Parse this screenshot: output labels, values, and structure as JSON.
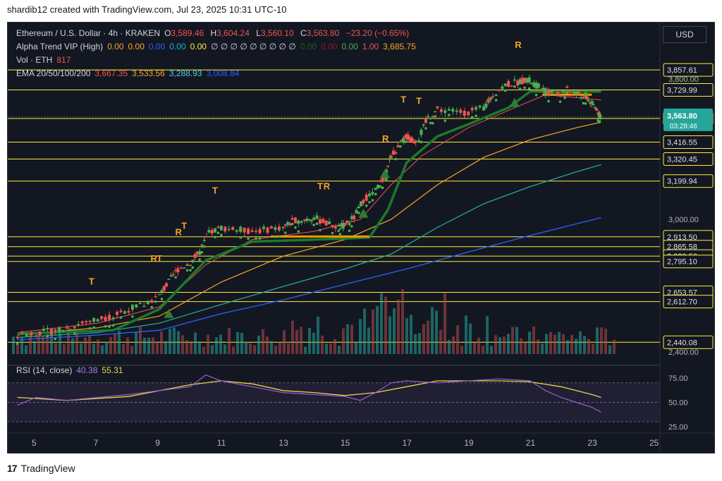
{
  "header": {
    "caption": "shardib12 created with TradingView.com, Jul 23, 2025 10:31 UTC-10",
    "currency_button": "USD"
  },
  "legend": {
    "symbol": "Ethereum / U.S. Dollar · 4h · KRAKEN",
    "open_label": "O",
    "open": "3,589.46",
    "high_label": "H",
    "high": "3,604.24",
    "low_label": "L",
    "low": "3,560.10",
    "close_label": "C",
    "close": "3,563.80",
    "change": "−23.20 (−0.65%)",
    "alpha_name": "Alpha Trend VIP (High)",
    "alpha_values": [
      {
        "text": "0.00",
        "color": "#f5a623"
      },
      {
        "text": "0.00",
        "color": "#f5a623"
      },
      {
        "text": "0.00",
        "color": "#2962ff"
      },
      {
        "text": "0.00",
        "color": "#00bcd4"
      },
      {
        "text": "0.00",
        "color": "#ffeb3b"
      },
      {
        "text": "∅ ∅ ∅ ∅ ∅ ∅ ∅ ∅ ∅",
        "color": "#d1d4dc"
      },
      {
        "text": "0.00",
        "color": "#1b5e20"
      },
      {
        "text": "0.00",
        "color": "#8b1a1a"
      },
      {
        "text": "0.00",
        "color": "#4caf50"
      },
      {
        "text": "1.00",
        "color": "#ef5350"
      },
      {
        "text": "3,685.75",
        "color": "#f5a623"
      }
    ],
    "vol_name": "Vol · ETH",
    "vol_value": "817",
    "ema_name": "EMA 20/50/100/200",
    "ema_values": [
      {
        "text": "3,667.35",
        "color": "#ef5350"
      },
      {
        "text": "3,533.56",
        "color": "#f5a623"
      },
      {
        "text": "3,288.93",
        "color": "#4dd0e1"
      },
      {
        "text": "3,008.84",
        "color": "#2962ff"
      }
    ]
  },
  "rsi": {
    "label": "RSI (14, close)",
    "value1": "40.38",
    "value2": "55.31",
    "ticks": [
      "75.00",
      "50.00",
      "25.00"
    ]
  },
  "brand": {
    "name": "TradingView"
  },
  "colors": {
    "bg": "#131722",
    "up": "#4caf50",
    "down": "#ef5350",
    "grid_line": "#ffeb3b",
    "ema20": "#ef5350",
    "ema50": "#f5a623",
    "ema100": "#26a69a",
    "ema200": "#2962ff",
    "trend": "#1b7a2b",
    "rsi": "#9c5fd0",
    "rsi_ma": "#e6d84a"
  },
  "chart_data": {
    "type": "candlestick",
    "symbol": "ETH/USD",
    "timeframe": "4h",
    "x_labels": [
      "5",
      "7",
      "9",
      "11",
      "13",
      "15",
      "17",
      "19",
      "21",
      "23",
      "25"
    ],
    "price_axis_labels": [
      "3,800.00",
      "3,600.00",
      "3,000.00",
      "2,400.00"
    ],
    "horizontal_levels": [
      3857.61,
      3729.99,
      3554.68,
      3416.55,
      3320.45,
      3199.94,
      2913.5,
      2865.58,
      2820.56,
      2795.1,
      2653.57,
      2612.7,
      2440.08
    ],
    "last_price": "3,563.80",
    "countdown": "03:28:46",
    "trend_markers": [
      {
        "label": "T",
        "day": 6.8
      },
      {
        "label": "R",
        "day": 8.8
      },
      {
        "label": "T",
        "day": 9.0
      },
      {
        "label": "R",
        "day": 9.6
      },
      {
        "label": "T",
        "day": 9.8
      },
      {
        "label": "T",
        "day": 10.8
      },
      {
        "label": "T",
        "day": 14.2
      },
      {
        "label": "R",
        "day": 14.4
      },
      {
        "label": "R",
        "day": 16.3
      },
      {
        "label": "T",
        "day": 16.9
      },
      {
        "label": "T",
        "day": 17.4
      },
      {
        "label": "R",
        "day": 20.6
      }
    ],
    "price_path": [
      [
        4.4,
        2470
      ],
      [
        5.0,
        2480
      ],
      [
        5.5,
        2485
      ],
      [
        6.0,
        2500
      ],
      [
        6.5,
        2520
      ],
      [
        7.0,
        2540
      ],
      [
        7.5,
        2550
      ],
      [
        8.0,
        2580
      ],
      [
        8.5,
        2600
      ],
      [
        9.0,
        2640
      ],
      [
        9.3,
        2700
      ],
      [
        9.6,
        2760
      ],
      [
        10.0,
        2790
      ],
      [
        10.3,
        2840
      ],
      [
        10.6,
        2930
      ],
      [
        11.0,
        2960
      ],
      [
        11.5,
        2950
      ],
      [
        12.0,
        2940
      ],
      [
        12.5,
        2950
      ],
      [
        13.0,
        2960
      ],
      [
        13.3,
        2990
      ],
      [
        13.7,
        3000
      ],
      [
        14.0,
        3010
      ],
      [
        14.4,
        2980
      ],
      [
        14.8,
        2960
      ],
      [
        15.0,
        2970
      ],
      [
        15.3,
        3010
      ],
      [
        15.6,
        3100
      ],
      [
        16.0,
        3150
      ],
      [
        16.3,
        3230
      ],
      [
        16.5,
        3340
      ],
      [
        16.8,
        3400
      ],
      [
        17.0,
        3450
      ],
      [
        17.2,
        3420
      ],
      [
        17.4,
        3440
      ],
      [
        17.7,
        3560
      ],
      [
        18.0,
        3610
      ],
      [
        18.5,
        3600
      ],
      [
        19.0,
        3590
      ],
      [
        19.5,
        3620
      ],
      [
        19.8,
        3700
      ],
      [
        20.2,
        3760
      ],
      [
        20.6,
        3780
      ],
      [
        20.9,
        3800
      ],
      [
        21.2,
        3760
      ],
      [
        21.5,
        3720
      ],
      [
        21.9,
        3700
      ],
      [
        22.2,
        3730
      ],
      [
        22.5,
        3700
      ],
      [
        22.8,
        3690
      ],
      [
        23.0,
        3640
      ],
      [
        23.2,
        3600
      ],
      [
        23.3,
        3564
      ]
    ],
    "ema20_path": [
      [
        4.4,
        2480
      ],
      [
        7,
        2520
      ],
      [
        9,
        2590
      ],
      [
        10.5,
        2780
      ],
      [
        12,
        2900
      ],
      [
        14,
        2940
      ],
      [
        15.5,
        3000
      ],
      [
        16.5,
        3180
      ],
      [
        17.5,
        3340
      ],
      [
        19,
        3500
      ],
      [
        20.5,
        3620
      ],
      [
        21.5,
        3700
      ],
      [
        23.3,
        3667
      ]
    ],
    "ema50_path": [
      [
        4.4,
        2470
      ],
      [
        7,
        2500
      ],
      [
        9,
        2550
      ],
      [
        11,
        2700
      ],
      [
        13,
        2820
      ],
      [
        15,
        2900
      ],
      [
        16.5,
        3000
      ],
      [
        18,
        3180
      ],
      [
        19.5,
        3330
      ],
      [
        21,
        3430
      ],
      [
        22.5,
        3500
      ],
      [
        23.3,
        3533
      ]
    ],
    "ema100_path": [
      [
        4.4,
        2460
      ],
      [
        7,
        2480
      ],
      [
        9,
        2520
      ],
      [
        11,
        2600
      ],
      [
        13,
        2680
      ],
      [
        15,
        2760
      ],
      [
        16.5,
        2830
      ],
      [
        18,
        2960
      ],
      [
        19.5,
        3080
      ],
      [
        21,
        3170
      ],
      [
        22.5,
        3250
      ],
      [
        23.3,
        3289
      ]
    ],
    "ema200_path": [
      [
        4.4,
        2450
      ],
      [
        7,
        2470
      ],
      [
        9,
        2490
      ],
      [
        11,
        2560
      ],
      [
        13,
        2620
      ],
      [
        15,
        2690
      ],
      [
        17,
        2760
      ],
      [
        19,
        2840
      ],
      [
        21,
        2920
      ],
      [
        23.3,
        3009
      ]
    ],
    "trend_path": [
      [
        4.4,
        2475
      ],
      [
        7.5,
        2490
      ],
      [
        9,
        2580
      ],
      [
        10.5,
        2800
      ],
      [
        12,
        2890
      ],
      [
        14,
        2900
      ],
      [
        15.8,
        2910
      ],
      [
        16.4,
        3050
      ],
      [
        17,
        3300
      ],
      [
        18,
        3450
      ],
      [
        19,
        3520
      ],
      [
        20.3,
        3620
      ],
      [
        21,
        3720
      ],
      [
        23.3,
        3720
      ]
    ],
    "rsi_path": [
      [
        4.4,
        47
      ],
      [
        5,
        55
      ],
      [
        6,
        52
      ],
      [
        7,
        55
      ],
      [
        8,
        58
      ],
      [
        9,
        62
      ],
      [
        10,
        66
      ],
      [
        10.5,
        78
      ],
      [
        11,
        72
      ],
      [
        12,
        66
      ],
      [
        13,
        60
      ],
      [
        14,
        58
      ],
      [
        15,
        56
      ],
      [
        15.5,
        52
      ],
      [
        16,
        60
      ],
      [
        16.5,
        70
      ],
      [
        17,
        72
      ],
      [
        18,
        70
      ],
      [
        19,
        72
      ],
      [
        20,
        74
      ],
      [
        21,
        72
      ],
      [
        21.5,
        62
      ],
      [
        22,
        55
      ],
      [
        22.5,
        50
      ],
      [
        23,
        45
      ],
      [
        23.3,
        40
      ]
    ],
    "rsi_ma_path": [
      [
        4.4,
        55
      ],
      [
        6,
        52
      ],
      [
        8,
        56
      ],
      [
        10,
        68
      ],
      [
        11,
        72
      ],
      [
        12,
        69
      ],
      [
        13,
        62
      ],
      [
        14,
        60
      ],
      [
        15,
        57
      ],
      [
        16,
        60
      ],
      [
        17,
        66
      ],
      [
        18,
        72
      ],
      [
        19,
        72
      ],
      [
        20,
        72
      ],
      [
        21,
        71
      ],
      [
        22,
        66
      ],
      [
        23,
        58
      ],
      [
        23.3,
        55
      ]
    ]
  }
}
